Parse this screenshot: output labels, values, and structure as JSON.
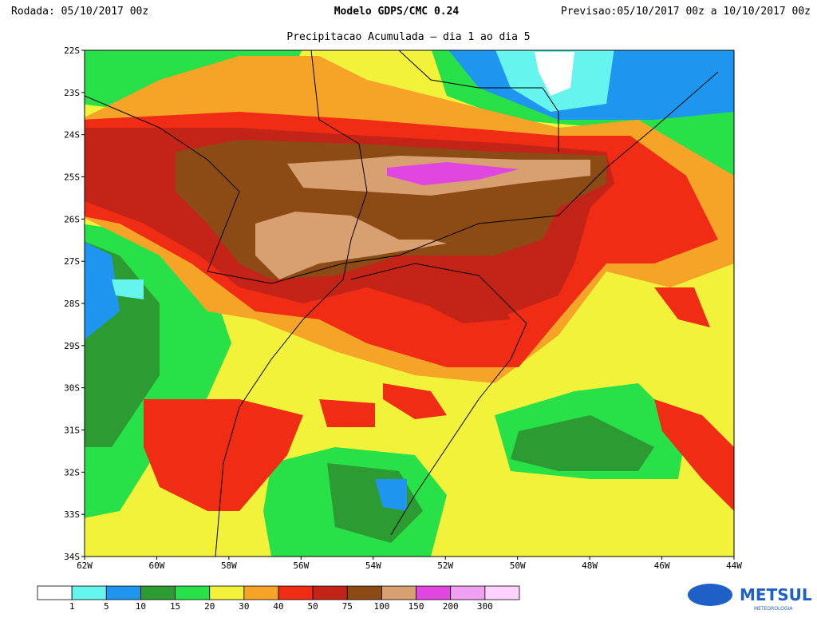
{
  "header": {
    "run": "Rodada: 05/10/2017 00z",
    "model": "Modelo GDPS/CMC 0.24",
    "forecast": "Previsao:05/10/2017 00z a 10/10/2017 00z",
    "subtitle": "Precipitacao Acumulada — dia 1 ao dia 5"
  },
  "map": {
    "lat_labels": [
      "22S",
      "23S",
      "24S",
      "25S",
      "26S",
      "27S",
      "28S",
      "29S",
      "30S",
      "31S",
      "32S",
      "33S",
      "34S"
    ],
    "lon_labels": [
      "62W",
      "60W",
      "58W",
      "56W",
      "54W",
      "52W",
      "50W",
      "48W",
      "46W",
      "44W"
    ]
  },
  "legend": {
    "colors": [
      "#ffffff",
      "#66f5ee",
      "#1e96f0",
      "#2c9c32",
      "#28e048",
      "#f2f23a",
      "#f5a428",
      "#f02c14",
      "#c42418",
      "#8c4a14",
      "#d8a070",
      "#e046e0",
      "#f0a0f0",
      "#ffd2ff"
    ],
    "labels": [
      "1",
      "5",
      "10",
      "15",
      "20",
      "30",
      "40",
      "50",
      "75",
      "100",
      "150",
      "200",
      "300"
    ]
  },
  "logo": {
    "text": "METSUL",
    "subtext": "METEOROLOGIA"
  }
}
